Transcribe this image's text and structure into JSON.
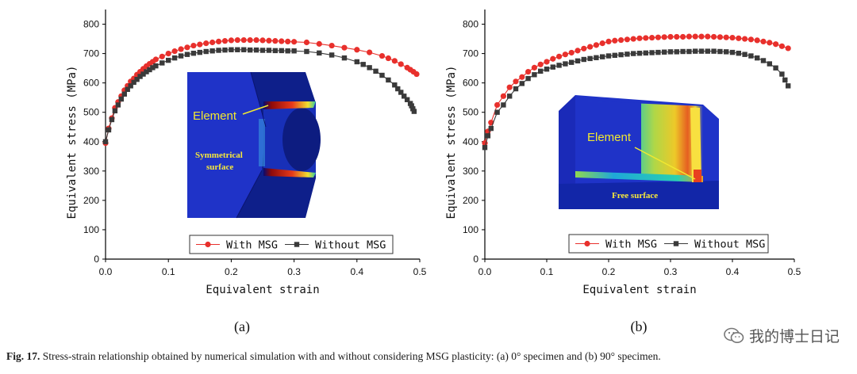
{
  "chart_data": [
    {
      "type": "scatter",
      "panel_label": "(a)",
      "xlabel": "Equivalent strain",
      "ylabel": "Equivalent stress (MPa)",
      "xlim": [
        0,
        0.5
      ],
      "ylim": [
        0,
        850
      ],
      "xticks": [
        "0.0",
        "0.1",
        "0.2",
        "0.3",
        "0.4",
        "0.5"
      ],
      "yticks": [
        "0",
        "100",
        "200",
        "300",
        "400",
        "500",
        "600",
        "700",
        "800"
      ],
      "legend_position": "bottom-center",
      "inset": {
        "element_label": "Element",
        "surface_label_line1": "Symmetrical",
        "surface_label_line2": "surface"
      },
      "series": [
        {
          "name": "With MSG",
          "color": "#e8302c",
          "marker": "circle",
          "x": [
            0.0,
            0.005,
            0.01,
            0.015,
            0.02,
            0.025,
            0.03,
            0.035,
            0.04,
            0.045,
            0.05,
            0.055,
            0.06,
            0.065,
            0.07,
            0.075,
            0.08,
            0.09,
            0.1,
            0.11,
            0.12,
            0.13,
            0.14,
            0.15,
            0.16,
            0.17,
            0.18,
            0.19,
            0.2,
            0.21,
            0.22,
            0.23,
            0.24,
            0.25,
            0.26,
            0.27,
            0.28,
            0.29,
            0.3,
            0.32,
            0.34,
            0.36,
            0.38,
            0.4,
            0.42,
            0.44,
            0.45,
            0.46,
            0.47,
            0.48,
            0.485,
            0.49,
            0.495
          ],
          "y": [
            395,
            445,
            480,
            515,
            535,
            555,
            575,
            590,
            605,
            615,
            628,
            638,
            648,
            657,
            665,
            672,
            680,
            690,
            700,
            708,
            715,
            721,
            727,
            731,
            735,
            738,
            741,
            743,
            745,
            746,
            746,
            746,
            746,
            745,
            744,
            743,
            742,
            741,
            740,
            738,
            733,
            727,
            720,
            713,
            704,
            692,
            684,
            675,
            664,
            652,
            645,
            638,
            630
          ]
        },
        {
          "name": "Without MSG",
          "color": "#3a3a3a",
          "marker": "square",
          "x": [
            0.0,
            0.005,
            0.01,
            0.015,
            0.02,
            0.025,
            0.03,
            0.035,
            0.04,
            0.045,
            0.05,
            0.055,
            0.06,
            0.065,
            0.07,
            0.075,
            0.08,
            0.09,
            0.1,
            0.11,
            0.12,
            0.13,
            0.14,
            0.15,
            0.16,
            0.17,
            0.18,
            0.19,
            0.2,
            0.21,
            0.22,
            0.23,
            0.24,
            0.25,
            0.26,
            0.27,
            0.28,
            0.29,
            0.3,
            0.32,
            0.34,
            0.36,
            0.38,
            0.4,
            0.41,
            0.42,
            0.43,
            0.44,
            0.45,
            0.46,
            0.465,
            0.47,
            0.475,
            0.48,
            0.485,
            0.487,
            0.489,
            0.491
          ],
          "y": [
            400,
            440,
            475,
            505,
            525,
            545,
            562,
            578,
            590,
            602,
            612,
            622,
            630,
            638,
            645,
            652,
            658,
            668,
            677,
            685,
            692,
            697,
            701,
            704,
            707,
            709,
            711,
            712,
            713,
            713,
            713,
            712,
            712,
            711,
            711,
            710,
            710,
            709,
            709,
            707,
            702,
            695,
            685,
            672,
            663,
            652,
            640,
            626,
            610,
            593,
            580,
            568,
            555,
            543,
            530,
            522,
            512,
            503
          ]
        }
      ]
    },
    {
      "type": "scatter",
      "panel_label": "(b)",
      "xlabel": "Equivalent strain",
      "ylabel": "Equivalent stress (MPa)",
      "xlim": [
        0,
        0.5
      ],
      "ylim": [
        0,
        850
      ],
      "xticks": [
        "0.0",
        "0.1",
        "0.2",
        "0.3",
        "0.4",
        "0.5"
      ],
      "yticks": [
        "0",
        "100",
        "200",
        "300",
        "400",
        "500",
        "600",
        "700",
        "800"
      ],
      "legend_position": "bottom-center",
      "inset": {
        "element_label": "Element",
        "surface_label": "Free surface"
      },
      "series": [
        {
          "name": "With MSG",
          "color": "#e8302c",
          "marker": "circle",
          "x": [
            0.0,
            0.005,
            0.01,
            0.02,
            0.03,
            0.04,
            0.05,
            0.06,
            0.07,
            0.08,
            0.09,
            0.1,
            0.11,
            0.12,
            0.13,
            0.14,
            0.15,
            0.16,
            0.17,
            0.18,
            0.19,
            0.2,
            0.21,
            0.22,
            0.23,
            0.24,
            0.25,
            0.26,
            0.27,
            0.28,
            0.29,
            0.3,
            0.31,
            0.32,
            0.33,
            0.34,
            0.35,
            0.36,
            0.37,
            0.38,
            0.39,
            0.4,
            0.41,
            0.42,
            0.43,
            0.44,
            0.45,
            0.46,
            0.47,
            0.48,
            0.49
          ],
          "y": [
            395,
            435,
            465,
            525,
            555,
            585,
            605,
            620,
            638,
            652,
            663,
            672,
            682,
            690,
            697,
            703,
            710,
            717,
            723,
            729,
            735,
            741,
            744,
            746,
            748,
            750,
            752,
            753,
            754,
            755,
            756,
            757,
            757,
            757,
            758,
            758,
            758,
            758,
            757,
            756,
            755,
            754,
            752,
            750,
            748,
            745,
            741,
            737,
            732,
            725,
            718
          ]
        },
        {
          "name": "Without MSG",
          "color": "#3a3a3a",
          "marker": "square",
          "x": [
            0.0,
            0.005,
            0.01,
            0.02,
            0.03,
            0.04,
            0.05,
            0.06,
            0.07,
            0.08,
            0.09,
            0.1,
            0.11,
            0.12,
            0.13,
            0.14,
            0.15,
            0.16,
            0.17,
            0.18,
            0.19,
            0.2,
            0.21,
            0.22,
            0.23,
            0.24,
            0.25,
            0.26,
            0.27,
            0.28,
            0.29,
            0.3,
            0.31,
            0.32,
            0.33,
            0.34,
            0.35,
            0.36,
            0.37,
            0.38,
            0.39,
            0.4,
            0.41,
            0.42,
            0.43,
            0.44,
            0.45,
            0.46,
            0.47,
            0.48,
            0.485,
            0.49
          ],
          "y": [
            380,
            420,
            445,
            500,
            525,
            555,
            580,
            598,
            615,
            628,
            640,
            647,
            654,
            660,
            665,
            670,
            675,
            680,
            683,
            686,
            689,
            692,
            694,
            696,
            698,
            700,
            701,
            702,
            703,
            704,
            705,
            706,
            706,
            707,
            707,
            708,
            708,
            708,
            708,
            707,
            706,
            704,
            701,
            697,
            692,
            685,
            676,
            665,
            651,
            630,
            610,
            590
          ]
        }
      ]
    }
  ],
  "caption": {
    "figure_label": "Fig. 17.",
    "text": " Stress-strain relationship obtained by numerical simulation with and without considering MSG plasticity: (a) 0° specimen and (b) 90° specimen."
  },
  "watermark": {
    "text": "我的博士日记",
    "icon": "wechat-icon"
  }
}
